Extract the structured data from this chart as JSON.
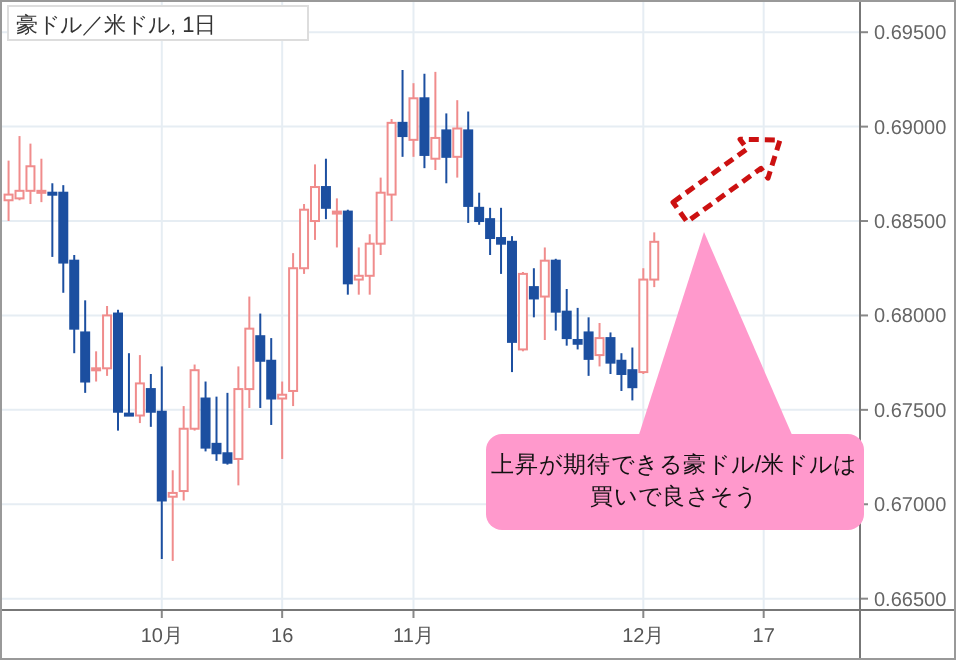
{
  "chart_data": {
    "type": "candlestick",
    "title": "豪ドル／米ドル, 1日",
    "categories": [
      null,
      null,
      null,
      null,
      null,
      null,
      null,
      null,
      null,
      null,
      null,
      null,
      null,
      null,
      "10月",
      null,
      null,
      null,
      null,
      null,
      null,
      null,
      null,
      null,
      null,
      "16",
      null,
      null,
      null,
      null,
      null,
      null,
      null,
      null,
      null,
      null,
      null,
      "11月",
      null,
      null,
      null,
      null,
      null,
      null,
      null,
      null,
      null,
      null,
      null,
      null,
      null,
      null,
      null,
      null,
      null,
      null,
      null,
      null,
      "12月",
      null,
      null,
      null,
      null,
      null,
      null,
      null,
      null,
      null,
      null,
      "17",
      null,
      null,
      null,
      null,
      null,
      null,
      null,
      null
    ],
    "ohlc": [
      [
        0.6861,
        0.6882,
        0.685,
        0.6864
      ],
      [
        0.6862,
        0.6895,
        0.6861,
        0.6866
      ],
      [
        0.6866,
        0.6891,
        0.6859,
        0.6879
      ],
      [
        0.6865,
        0.6883,
        0.686,
        0.6866
      ],
      [
        0.6865,
        0.687,
        0.6831,
        0.6864
      ],
      [
        0.6865,
        0.6869,
        0.6812,
        0.6828
      ],
      [
        0.6829,
        0.6832,
        0.678,
        0.6793
      ],
      [
        0.6791,
        0.6808,
        0.6759,
        0.6765
      ],
      [
        0.6771,
        0.6781,
        0.6765,
        0.6772
      ],
      [
        0.6772,
        0.6805,
        0.6768,
        0.68
      ],
      [
        0.6801,
        0.6803,
        0.6739,
        0.6749
      ],
      [
        0.6748,
        0.678,
        0.6747,
        0.6747
      ],
      [
        0.6747,
        0.6779,
        0.6743,
        0.6764
      ],
      [
        0.6761,
        0.6769,
        0.6741,
        0.6749
      ],
      [
        0.6749,
        0.6773,
        0.6671,
        0.6702
      ],
      [
        0.6704,
        0.6718,
        0.667,
        0.6706
      ],
      [
        0.6707,
        0.6752,
        0.6702,
        0.674
      ],
      [
        0.674,
        0.6774,
        0.6739,
        0.6771
      ],
      [
        0.6756,
        0.6765,
        0.6728,
        0.673
      ],
      [
        0.6732,
        0.6757,
        0.6723,
        0.6727
      ],
      [
        0.6727,
        0.6759,
        0.6721,
        0.6722
      ],
      [
        0.6724,
        0.6773,
        0.671,
        0.6761
      ],
      [
        0.6761,
        0.681,
        0.6751,
        0.6793
      ],
      [
        0.6789,
        0.6801,
        0.6751,
        0.6776
      ],
      [
        0.6776,
        0.6788,
        0.6742,
        0.6756
      ],
      [
        0.6756,
        0.6765,
        0.6724,
        0.6758
      ],
      [
        0.676,
        0.6833,
        0.6752,
        0.6825
      ],
      [
        0.6825,
        0.6859,
        0.6822,
        0.6856
      ],
      [
        0.685,
        0.688,
        0.684,
        0.6868
      ],
      [
        0.6868,
        0.6883,
        0.6851,
        0.6857
      ],
      [
        0.6854,
        0.6862,
        0.6836,
        0.6855
      ],
      [
        0.6855,
        0.6856,
        0.6811,
        0.6817
      ],
      [
        0.6819,
        0.6836,
        0.6811,
        0.6821
      ],
      [
        0.6821,
        0.6843,
        0.6811,
        0.6838
      ],
      [
        0.6838,
        0.6873,
        0.6832,
        0.6865
      ],
      [
        0.6864,
        0.6904,
        0.685,
        0.6902
      ],
      [
        0.6902,
        0.693,
        0.6884,
        0.6895
      ],
      [
        0.6893,
        0.6923,
        0.6884,
        0.6915
      ],
      [
        0.6915,
        0.6928,
        0.6878,
        0.6885
      ],
      [
        0.6883,
        0.6929,
        0.6877,
        0.6894
      ],
      [
        0.6898,
        0.6907,
        0.687,
        0.6884
      ],
      [
        0.6884,
        0.6914,
        0.6873,
        0.6899
      ],
      [
        0.6898,
        0.6908,
        0.6849,
        0.6858
      ],
      [
        0.6857,
        0.6865,
        0.6848,
        0.685
      ],
      [
        0.6851,
        0.6857,
        0.6832,
        0.6841
      ],
      [
        0.6841,
        0.6857,
        0.6822,
        0.6838
      ],
      [
        0.6839,
        0.6842,
        0.677,
        0.6786
      ],
      [
        0.6782,
        0.6823,
        0.6781,
        0.6822
      ],
      [
        0.6815,
        0.6825,
        0.6799,
        0.6809
      ],
      [
        0.681,
        0.6836,
        0.6787,
        0.6829
      ],
      [
        0.6829,
        0.683,
        0.6792,
        0.6802
      ],
      [
        0.6802,
        0.6814,
        0.6784,
        0.6788
      ],
      [
        0.6787,
        0.6804,
        0.6782,
        0.6785
      ],
      [
        0.6791,
        0.6799,
        0.6768,
        0.6777
      ],
      [
        0.6779,
        0.6796,
        0.6773,
        0.6788
      ],
      [
        0.6788,
        0.6791,
        0.6769,
        0.6775
      ],
      [
        0.6776,
        0.678,
        0.676,
        0.6769
      ],
      [
        0.6771,
        0.6783,
        0.6755,
        0.6762
      ],
      [
        0.677,
        0.6825,
        0.6769,
        0.6819
      ],
      [
        0.6819,
        0.6844,
        0.6815,
        0.6839
      ],
      null,
      null,
      null,
      null,
      null,
      null,
      null,
      null,
      null,
      null,
      null,
      null,
      null,
      null,
      null,
      null,
      null,
      null
    ],
    "colors": [
      "#f08c8c",
      "#f08c8c",
      "#f08c8c",
      "#f08c8c",
      "#1c4fa0",
      "#1c4fa0",
      "#1c4fa0",
      "#1c4fa0",
      "#f08c8c",
      "#f08c8c",
      "#1c4fa0",
      "#1c4fa0",
      "#f08c8c",
      "#1c4fa0",
      "#1c4fa0",
      "#f08c8c",
      "#f08c8c",
      "#f08c8c",
      "#1c4fa0",
      "#1c4fa0",
      "#1c4fa0",
      "#f08c8c",
      "#f08c8c",
      "#1c4fa0",
      "#1c4fa0",
      "#f08c8c",
      "#f08c8c",
      "#f08c8c",
      "#f08c8c",
      "#1c4fa0",
      "#f08c8c",
      "#1c4fa0",
      "#f08c8c",
      "#f08c8c",
      "#f08c8c",
      "#f08c8c",
      "#1c4fa0",
      "#f08c8c",
      "#1c4fa0",
      "#f08c8c",
      "#1c4fa0",
      "#f08c8c",
      "#1c4fa0",
      "#1c4fa0",
      "#1c4fa0",
      "#1c4fa0",
      "#1c4fa0",
      "#f08c8c",
      "#1c4fa0",
      "#f08c8c",
      "#1c4fa0",
      "#1c4fa0",
      "#1c4fa0",
      "#1c4fa0",
      "#f08c8c",
      "#1c4fa0",
      "#1c4fa0",
      "#1c4fa0",
      "#f08c8c",
      "#f08c8c",
      null,
      null,
      null,
      null,
      null,
      null,
      null,
      null,
      null,
      null,
      null,
      null,
      null,
      null,
      null,
      null,
      null,
      null
    ],
    "ylim": [
      0.6644,
      0.6966
    ],
    "yticks": [
      {
        "value": 0.665,
        "label": "0.66500"
      },
      {
        "value": 0.67,
        "label": "0.67000"
      },
      {
        "value": 0.675,
        "label": "0.67500"
      },
      {
        "value": 0.68,
        "label": "0.68000"
      },
      {
        "value": 0.685,
        "label": "0.68500"
      },
      {
        "value": 0.69,
        "label": "0.69000"
      },
      {
        "value": 0.695,
        "label": "0.69500"
      }
    ],
    "grid": true,
    "annotations": [
      "上昇が期待できる豪ドル/米ドルは買いで良さそう"
    ]
  }
}
